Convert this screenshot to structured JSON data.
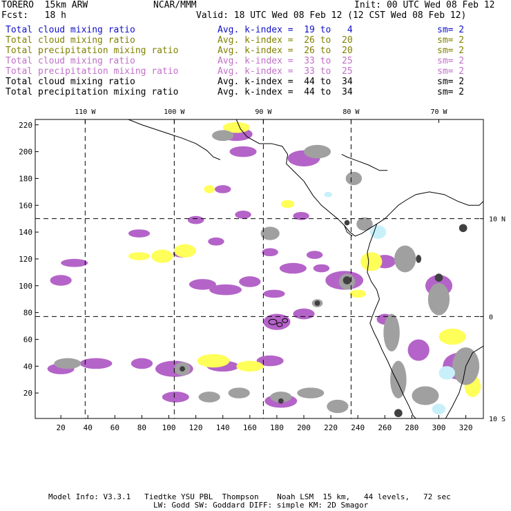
{
  "header": {
    "model": "TORERO  15km ARW",
    "org": "NCAR/MMM",
    "init": "Init: 00 UTC Wed 08 Feb 12",
    "fcst": "Fcst:   18 h",
    "valid": "Valid: 18 UTC Wed 08 Feb 12 (12 CST Wed 08 Feb 12)"
  },
  "legend": [
    {
      "label": "Total cloud mixing ratio",
      "kindex": "Avg. k-index =  19 to   4",
      "sm": "sm= 2",
      "color": "#1010c8"
    },
    {
      "label": "Total cloud mixing ratio",
      "kindex": "Avg. k-index =  26 to  20",
      "sm": "sm= 2",
      "color": "#808000"
    },
    {
      "label": "Total precipitation mixing ratio",
      "kindex": "Avg. k-index =  26 to  20",
      "sm": "sm= 2",
      "color": "#808000"
    },
    {
      "label": "Total cloud mixing ratio",
      "kindex": "Avg. k-index =  33 to  25",
      "sm": "sm= 2",
      "color": "#c070c8"
    },
    {
      "label": "Total precipitation mixing ratio",
      "kindex": "Avg. k-index =  33 to  25",
      "sm": "sm= 2",
      "color": "#c070c8"
    },
    {
      "label": "Total cloud mixing ratio",
      "kindex": "Avg. k-index =  44 to  34",
      "sm": "sm= 2",
      "color": "#000000"
    },
    {
      "label": "Total precipitation mixing ratio",
      "kindex": "Avg. k-index =  44 to  34",
      "sm": "sm= 2",
      "color": "#000000"
    }
  ],
  "footer": {
    "line1": "Model Info: V3.3.1   Tiedtke YSU PBL  Thompson    Noah LSM  15 km,   44 levels,   72 sec",
    "line2": "LW: Godd SW: Goddard DIFF: simple KM: 2D Smagor"
  },
  "chart_data": {
    "type": "map",
    "x_range": [
      1,
      333
    ],
    "y_range": [
      1,
      224
    ],
    "x_ticks": [
      20,
      40,
      60,
      80,
      100,
      120,
      140,
      160,
      180,
      200,
      220,
      240,
      260,
      280,
      300,
      320
    ],
    "y_ticks": [
      20,
      40,
      60,
      80,
      100,
      120,
      140,
      160,
      180,
      200,
      220
    ],
    "lon_labels": [
      {
        "label": "110 W",
        "x": 38
      },
      {
        "label": "100 W",
        "x": 104
      },
      {
        "label": "90 W",
        "x": 170
      },
      {
        "label": "80 W",
        "x": 235
      },
      {
        "label": "70 W",
        "x": 300
      }
    ],
    "lat_labels": [
      {
        "label": "10 N",
        "y": 150
      },
      {
        "label": "0",
        "y": 77
      },
      {
        "label": "10 S",
        "y": 1
      }
    ],
    "grid_x": [
      38,
      104,
      170,
      235
    ],
    "grid_y": [
      150,
      77
    ],
    "colors": {
      "yellow": "#ffff5a",
      "purple": "#b464c8",
      "gray": "#a0a0a0",
      "dark": "#404040",
      "cyan": "#c8f0fa"
    },
    "fields": [
      {
        "c": "purple",
        "x": 125,
        "y": 101,
        "rx": 10,
        "ry": 4
      },
      {
        "c": "purple",
        "x": 142,
        "y": 97,
        "rx": 12,
        "ry": 4
      },
      {
        "c": "purple",
        "x": 160,
        "y": 103,
        "rx": 8,
        "ry": 4
      },
      {
        "c": "purple",
        "x": 178,
        "y": 94,
        "rx": 8,
        "ry": 3
      },
      {
        "c": "purple",
        "x": 192,
        "y": 113,
        "rx": 10,
        "ry": 4
      },
      {
        "c": "purple",
        "x": 213,
        "y": 113,
        "rx": 6,
        "ry": 3
      },
      {
        "c": "purple",
        "x": 30,
        "y": 117,
        "rx": 10,
        "ry": 3
      },
      {
        "c": "purple",
        "x": 20,
        "y": 104,
        "rx": 8,
        "ry": 4
      },
      {
        "c": "purple",
        "x": 175,
        "y": 125,
        "rx": 6,
        "ry": 3
      },
      {
        "c": "purple",
        "x": 208,
        "y": 123,
        "rx": 6,
        "ry": 3
      },
      {
        "c": "purple",
        "x": 110,
        "y": 124,
        "rx": 7,
        "ry": 3
      },
      {
        "c": "purple",
        "x": 78,
        "y": 139,
        "rx": 8,
        "ry": 3
      },
      {
        "c": "purple",
        "x": 135,
        "y": 133,
        "rx": 6,
        "ry": 3
      },
      {
        "c": "purple",
        "x": 155,
        "y": 153,
        "rx": 6,
        "ry": 3
      },
      {
        "c": "purple",
        "x": 198,
        "y": 152,
        "rx": 6,
        "ry": 3
      },
      {
        "c": "purple",
        "x": 120,
        "y": 149,
        "rx": 6,
        "ry": 3
      },
      {
        "c": "purple",
        "x": 140,
        "y": 172,
        "rx": 6,
        "ry": 3
      },
      {
        "c": "purple",
        "x": 180,
        "y": 73,
        "rx": 10,
        "ry": 6
      },
      {
        "c": "purple",
        "x": 200,
        "y": 79,
        "rx": 8,
        "ry": 4
      },
      {
        "c": "purple",
        "x": 230,
        "y": 104,
        "rx": 14,
        "ry": 7
      },
      {
        "c": "purple",
        "x": 20,
        "y": 38,
        "rx": 10,
        "ry": 4
      },
      {
        "c": "purple",
        "x": 46,
        "y": 42,
        "rx": 12,
        "ry": 4
      },
      {
        "c": "purple",
        "x": 80,
        "y": 42,
        "rx": 8,
        "ry": 4
      },
      {
        "c": "purple",
        "x": 104,
        "y": 38,
        "rx": 14,
        "ry": 6
      },
      {
        "c": "purple",
        "x": 140,
        "y": 40,
        "rx": 12,
        "ry": 4
      },
      {
        "c": "purple",
        "x": 175,
        "y": 44,
        "rx": 10,
        "ry": 4
      },
      {
        "c": "purple",
        "x": 105,
        "y": 17,
        "rx": 10,
        "ry": 4
      },
      {
        "c": "purple",
        "x": 183,
        "y": 14,
        "rx": 12,
        "ry": 5
      },
      {
        "c": "purple",
        "x": 150,
        "y": 213,
        "rx": 12,
        "ry": 5
      },
      {
        "c": "purple",
        "x": 155,
        "y": 200,
        "rx": 10,
        "ry": 4
      },
      {
        "c": "purple",
        "x": 200,
        "y": 195,
        "rx": 12,
        "ry": 6
      },
      {
        "c": "purple",
        "x": 260,
        "y": 118,
        "rx": 8,
        "ry": 5
      },
      {
        "c": "purple",
        "x": 300,
        "y": 100,
        "rx": 10,
        "ry": 8
      },
      {
        "c": "purple",
        "x": 315,
        "y": 40,
        "rx": 12,
        "ry": 10
      },
      {
        "c": "purple",
        "x": 285,
        "y": 52,
        "rx": 8,
        "ry": 8
      },
      {
        "c": "purple",
        "x": 260,
        "y": 75,
        "rx": 6,
        "ry": 4
      },
      {
        "c": "yellow",
        "x": 78,
        "y": 122,
        "rx": 8,
        "ry": 3
      },
      {
        "c": "yellow",
        "x": 95,
        "y": 122,
        "rx": 8,
        "ry": 5
      },
      {
        "c": "yellow",
        "x": 112,
        "y": 126,
        "rx": 8,
        "ry": 5
      },
      {
        "c": "yellow",
        "x": 133,
        "y": 44,
        "rx": 12,
        "ry": 5
      },
      {
        "c": "yellow",
        "x": 160,
        "y": 40,
        "rx": 10,
        "ry": 4
      },
      {
        "c": "yellow",
        "x": 130,
        "y": 172,
        "rx": 4,
        "ry": 3
      },
      {
        "c": "yellow",
        "x": 188,
        "y": 161,
        "rx": 5,
        "ry": 3
      },
      {
        "c": "yellow",
        "x": 150,
        "y": 218,
        "rx": 10,
        "ry": 4
      },
      {
        "c": "yellow",
        "x": 250,
        "y": 118,
        "rx": 8,
        "ry": 7
      },
      {
        "c": "yellow",
        "x": 310,
        "y": 62,
        "rx": 10,
        "ry": 6
      },
      {
        "c": "yellow",
        "x": 325,
        "y": 25,
        "rx": 6,
        "ry": 8
      },
      {
        "c": "yellow",
        "x": 240,
        "y": 94,
        "rx": 6,
        "ry": 3
      },
      {
        "c": "gray",
        "x": 130,
        "y": 17,
        "rx": 8,
        "ry": 4
      },
      {
        "c": "gray",
        "x": 152,
        "y": 20,
        "rx": 8,
        "ry": 4
      },
      {
        "c": "gray",
        "x": 183,
        "y": 17,
        "rx": 8,
        "ry": 4
      },
      {
        "c": "gray",
        "x": 205,
        "y": 20,
        "rx": 10,
        "ry": 4
      },
      {
        "c": "gray",
        "x": 225,
        "y": 10,
        "rx": 8,
        "ry": 5
      },
      {
        "c": "gray",
        "x": 110,
        "y": 38,
        "rx": 6,
        "ry": 5
      },
      {
        "c": "gray",
        "x": 25,
        "y": 42,
        "rx": 10,
        "ry": 4
      },
      {
        "c": "gray",
        "x": 175,
        "y": 139,
        "rx": 7,
        "ry": 5
      },
      {
        "c": "gray",
        "x": 210,
        "y": 200,
        "rx": 10,
        "ry": 5
      },
      {
        "c": "gray",
        "x": 237,
        "y": 180,
        "rx": 6,
        "ry": 5
      },
      {
        "c": "gray",
        "x": 275,
        "y": 120,
        "rx": 8,
        "ry": 10
      },
      {
        "c": "gray",
        "x": 265,
        "y": 65,
        "rx": 6,
        "ry": 14
      },
      {
        "c": "gray",
        "x": 270,
        "y": 30,
        "rx": 6,
        "ry": 14
      },
      {
        "c": "gray",
        "x": 300,
        "y": 90,
        "rx": 8,
        "ry": 12
      },
      {
        "c": "gray",
        "x": 320,
        "y": 40,
        "rx": 10,
        "ry": 14
      },
      {
        "c": "gray",
        "x": 290,
        "y": 18,
        "rx": 10,
        "ry": 7
      },
      {
        "c": "gray",
        "x": 210,
        "y": 87,
        "rx": 4,
        "ry": 3
      },
      {
        "c": "gray",
        "x": 245,
        "y": 146,
        "rx": 6,
        "ry": 5
      },
      {
        "c": "gray",
        "x": 140,
        "y": 212,
        "rx": 8,
        "ry": 4
      },
      {
        "c": "gray",
        "x": 232,
        "y": 103,
        "rx": 6,
        "ry": 6
      },
      {
        "c": "cyan",
        "x": 255,
        "y": 140,
        "rx": 6,
        "ry": 5
      },
      {
        "c": "cyan",
        "x": 306,
        "y": 35,
        "rx": 6,
        "ry": 5
      },
      {
        "c": "cyan",
        "x": 300,
        "y": 8,
        "rx": 5,
        "ry": 4
      },
      {
        "c": "cyan",
        "x": 218,
        "y": 168,
        "rx": 3,
        "ry": 2
      },
      {
        "c": "dark",
        "x": 232,
        "y": 104,
        "rx": 3,
        "ry": 3
      },
      {
        "c": "dark",
        "x": 210,
        "y": 87,
        "rx": 2,
        "ry": 2
      },
      {
        "c": "dark",
        "x": 110,
        "y": 38,
        "rx": 2,
        "ry": 2
      },
      {
        "c": "dark",
        "x": 183,
        "y": 14,
        "rx": 2,
        "ry": 2
      },
      {
        "c": "dark",
        "x": 300,
        "y": 106,
        "rx": 3,
        "ry": 3
      },
      {
        "c": "dark",
        "x": 318,
        "y": 143,
        "rx": 3,
        "ry": 3
      },
      {
        "c": "dark",
        "x": 285,
        "y": 120,
        "rx": 2,
        "ry": 3
      },
      {
        "c": "dark",
        "x": 270,
        "y": 5,
        "rx": 3,
        "ry": 3
      },
      {
        "c": "dark",
        "x": 232,
        "y": 147,
        "rx": 2,
        "ry": 2
      }
    ],
    "coastlines": [
      [
        [
          70,
          224
        ],
        [
          80,
          220
        ],
        [
          95,
          215
        ],
        [
          110,
          210
        ],
        [
          120,
          206
        ],
        [
          128,
          201
        ],
        [
          133,
          196
        ],
        [
          138,
          194
        ]
      ],
      [
        [
          150,
          224
        ],
        [
          153,
          217
        ],
        [
          158,
          211
        ],
        [
          167,
          206
        ],
        [
          176,
          206
        ],
        [
          184,
          204
        ],
        [
          188,
          198
        ],
        [
          187,
          191
        ],
        [
          193,
          185
        ],
        [
          200,
          178
        ],
        [
          207,
          167
        ],
        [
          213,
          160
        ],
        [
          219,
          155
        ],
        [
          225,
          150
        ],
        [
          230,
          145
        ],
        [
          234,
          140
        ],
        [
          238,
          137
        ],
        [
          243,
          139
        ],
        [
          249,
          143
        ],
        [
          254,
          146
        ],
        [
          260,
          150
        ],
        [
          264,
          154
        ]
      ],
      [
        [
          264,
          154
        ],
        [
          270,
          160
        ],
        [
          276,
          164
        ],
        [
          283,
          168
        ],
        [
          293,
          170
        ],
        [
          304,
          168
        ],
        [
          314,
          163
        ],
        [
          322,
          160
        ],
        [
          330,
          160
        ],
        [
          333,
          163
        ]
      ],
      [
        [
          230,
          145
        ],
        [
          232,
          140
        ],
        [
          236,
          137
        ]
      ],
      [
        [
          254,
          146
        ],
        [
          252,
          140
        ],
        [
          249,
          132
        ],
        [
          247,
          125
        ],
        [
          248,
          118
        ],
        [
          247,
          110
        ],
        [
          250,
          103
        ],
        [
          254,
          97
        ],
        [
          256,
          90
        ],
        [
          253,
          83
        ],
        [
          251,
          78
        ],
        [
          249,
          72
        ],
        [
          252,
          65
        ],
        [
          255,
          59
        ],
        [
          258,
          52
        ],
        [
          262,
          44
        ],
        [
          266,
          35
        ],
        [
          270,
          27
        ],
        [
          274,
          18
        ],
        [
          278,
          10
        ],
        [
          281,
          3
        ],
        [
          283,
          1
        ]
      ],
      [
        [
          228,
          198
        ],
        [
          232,
          196
        ],
        [
          240,
          193
        ],
        [
          248,
          190
        ],
        [
          256,
          186
        ],
        [
          262,
          186
        ]
      ],
      [
        [
          305,
          1
        ],
        [
          310,
          10
        ],
        [
          315,
          20
        ],
        [
          318,
          30
        ],
        [
          320,
          40
        ],
        [
          325,
          50
        ],
        [
          333,
          55
        ]
      ]
    ],
    "islands": [
      {
        "x": 177,
        "y": 73,
        "rx": 3,
        "ry": 2
      },
      {
        "x": 182,
        "y": 71,
        "rx": 2,
        "ry": 1.5
      },
      {
        "x": 186,
        "y": 74,
        "rx": 2,
        "ry": 1.5
      }
    ]
  }
}
